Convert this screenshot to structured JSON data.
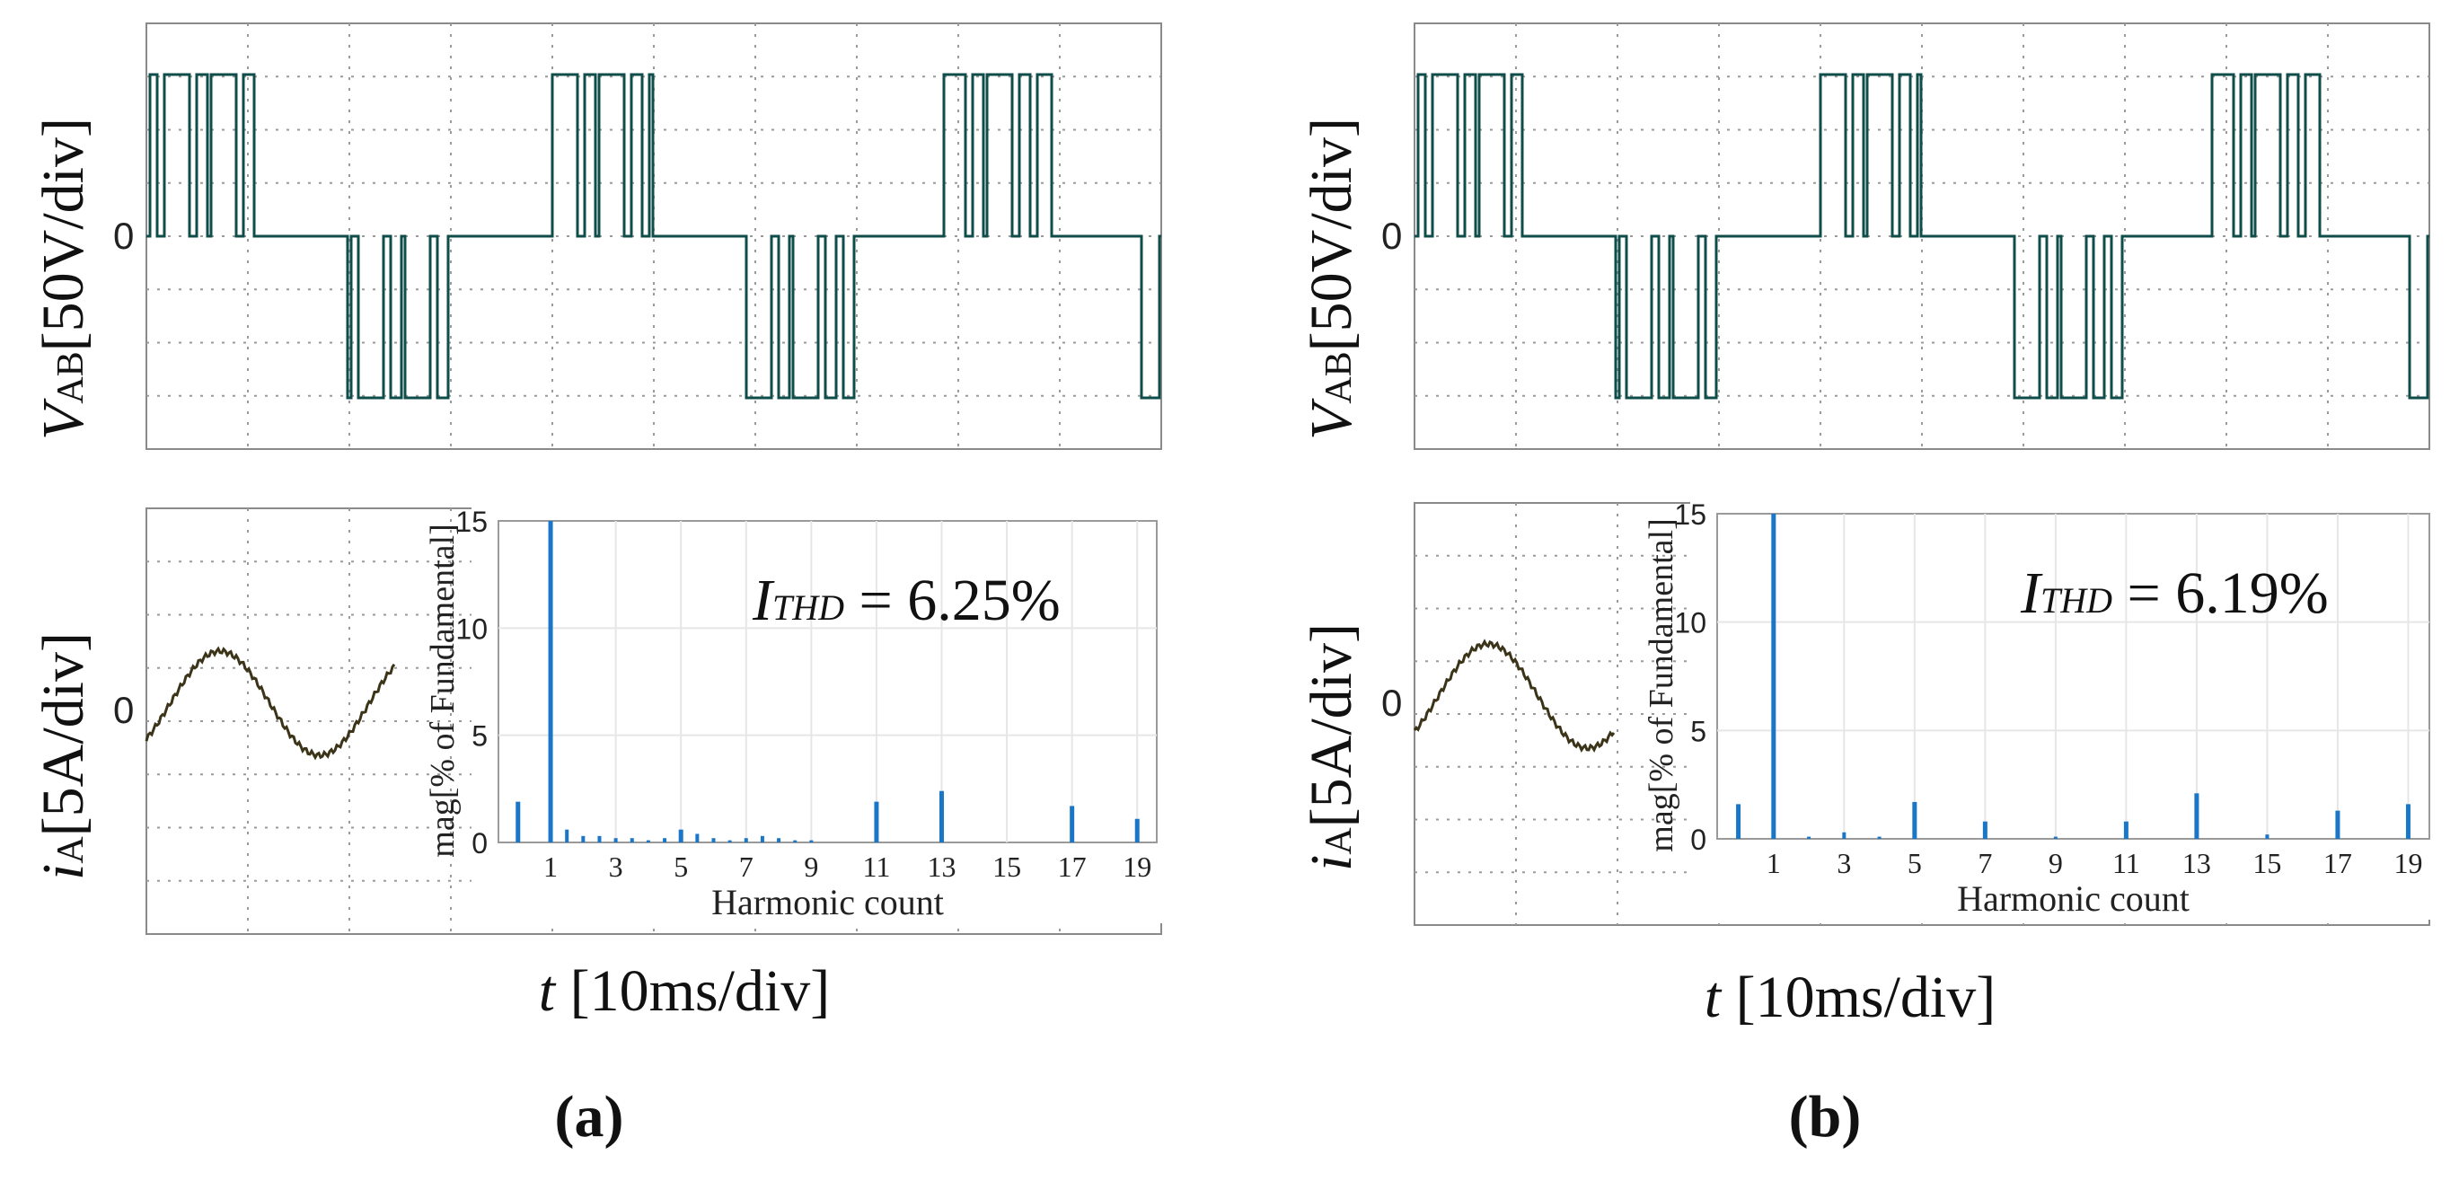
{
  "colors": {
    "voltage_trace": "#0f4d4a",
    "current_trace": "#3b3418",
    "spectrum_bar": "#1a76c6",
    "grid": "#9a9a9a",
    "frame": "#8a8a8a"
  },
  "labels": {
    "vab_axis_symbol": "V",
    "vab_axis_sub": "AB",
    "vab_axis_unit": "[50V/div]",
    "ia_axis_symbol": "i",
    "ia_axis_sub": "A",
    "ia_axis_unit": "[5A/div]",
    "zero_tick": "0",
    "time_axis_symbol": "t",
    "time_axis_unit": " [10ms/div]",
    "spectrum_ylabel": "mag[% of Fundamental]",
    "spectrum_xlabel": "Harmonic count",
    "thd_symbol": "I",
    "thd_sub": "THD",
    "thd_eq": " = "
  },
  "panels": [
    {
      "caption": "(a)",
      "thd_value": "6.25%"
    },
    {
      "caption": "(b)",
      "thd_value": "6.19%"
    }
  ],
  "chart_data": [
    {
      "type": "bar",
      "title": "",
      "xlabel": "Harmonic count",
      "ylabel": "mag[% of Fundamental]",
      "ylim": [
        0,
        15
      ],
      "yticks": [
        0,
        5,
        10,
        15
      ],
      "xticks": [
        1,
        3,
        5,
        7,
        9,
        11,
        13,
        15,
        17,
        19
      ],
      "x": [
        0,
        1,
        1.5,
        2,
        2.5,
        3,
        3.5,
        4,
        4.5,
        5,
        5.5,
        6,
        6.5,
        7,
        7.5,
        8,
        8.5,
        9,
        11,
        13,
        17,
        19
      ],
      "values": [
        1.9,
        15,
        0.6,
        0.3,
        0.3,
        0.2,
        0.2,
        0.1,
        0.2,
        0.6,
        0.4,
        0.2,
        0.1,
        0.2,
        0.3,
        0.2,
        0.1,
        0.1,
        1.9,
        2.4,
        1.7,
        1.1
      ],
      "annotation": "I_THD = 6.25%"
    },
    {
      "type": "bar",
      "title": "",
      "xlabel": "Harmonic count",
      "ylabel": "mag[% of Fundamental]",
      "ylim": [
        0,
        15
      ],
      "yticks": [
        0,
        5,
        10,
        15
      ],
      "xticks": [
        1,
        3,
        5,
        7,
        9,
        11,
        13,
        15,
        17,
        19
      ],
      "x": [
        0,
        1,
        2,
        3,
        4,
        5,
        7,
        9,
        11,
        13,
        15,
        17,
        19
      ],
      "values": [
        1.6,
        15,
        0.1,
        0.3,
        0.1,
        1.7,
        0.8,
        0.1,
        0.8,
        2.1,
        0.2,
        1.3,
        1.6
      ],
      "annotation": "I_THD = 6.19%"
    }
  ]
}
